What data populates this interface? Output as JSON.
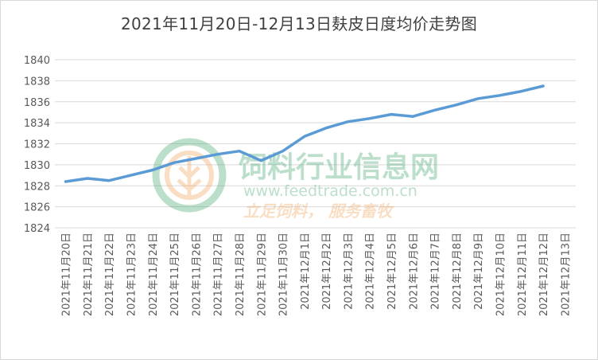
{
  "chart_data": {
    "type": "line",
    "title": "2021年11月20日-12月13日麸皮日度均价走势图",
    "xlabel": "",
    "ylabel": "",
    "ylim": [
      1824,
      1840
    ],
    "yticks": [
      1824,
      1826,
      1828,
      1830,
      1832,
      1834,
      1836,
      1838,
      1840
    ],
    "grid": true,
    "legend": "none",
    "categories": [
      "2021年11月20日",
      "2021年11月21日",
      "2021年11月22日",
      "2021年11月23日",
      "2021年11月24日",
      "2021年11月25日",
      "2021年11月26日",
      "2021年11月27日",
      "2021年11月28日",
      "2021年11月29日",
      "2021年11月30日",
      "2021年12月1日",
      "2021年12月2日",
      "2021年12月3日",
      "2021年12月4日",
      "2021年12月5日",
      "2021年12月6日",
      "2021年12月7日",
      "2021年12月8日",
      "2021年12月9日",
      "2021年12月10日",
      "2021年12月11日",
      "2021年12月12日",
      "2021年12月13日"
    ],
    "series": [
      {
        "values": [
          1828.4,
          1828.7,
          1828.5,
          1829.0,
          1829.5,
          1830.2,
          1830.6,
          1831.0,
          1831.3,
          1830.4,
          1831.3,
          1832.7,
          1833.5,
          1834.1,
          1834.4,
          1834.8,
          1834.6,
          1835.2,
          1835.7,
          1836.3,
          1836.6,
          1837.0,
          1837.5,
          null
        ],
        "color": "#5b9bd5"
      }
    ],
    "colors": {
      "line": "#5b9bd5",
      "grid": "#d9d9d9",
      "axis_text": "#595959"
    }
  },
  "watermark": {
    "name": "饲料行业信息网",
    "url": "www.feedtrade.com.cn",
    "slogan": "立足饲料， 服务畜牧",
    "colors": {
      "green": "#3fa66b",
      "orange": "#f0a35a"
    }
  }
}
